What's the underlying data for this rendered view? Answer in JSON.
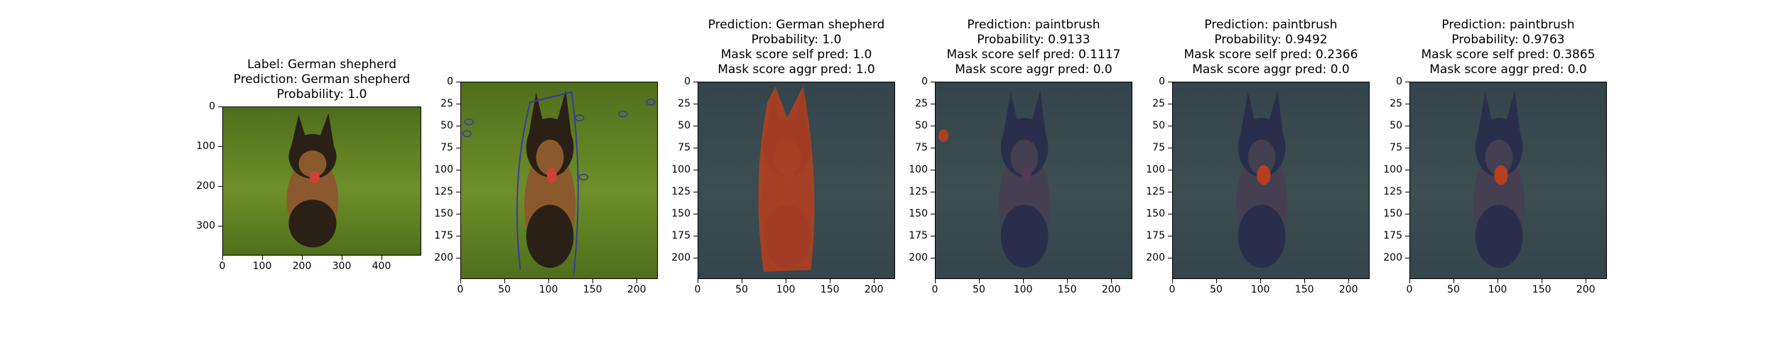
{
  "chart_data": [
    {
      "type": "image",
      "titles": [
        "Label: German shepherd",
        "Prediction: German shepherd",
        "Probability: 1.0"
      ],
      "x_ticks": [
        "0",
        "100",
        "200",
        "300",
        "400"
      ],
      "y_ticks": [
        "0",
        "100",
        "200",
        "300"
      ],
      "xlim": [
        0,
        500
      ],
      "ylim": [
        375,
        0
      ],
      "overlay": "none"
    },
    {
      "type": "image",
      "titles": [],
      "x_ticks": [
        "0",
        "50",
        "100",
        "150",
        "200"
      ],
      "y_ticks": [
        "0",
        "25",
        "50",
        "75",
        "100",
        "125",
        "150",
        "175",
        "200"
      ],
      "xlim": [
        0,
        224
      ],
      "ylim": [
        224,
        0
      ],
      "overlay": "segment-outlines"
    },
    {
      "type": "image",
      "titles": [
        "Prediction: German shepherd",
        "Probability: 1.0",
        "Mask score self pred: 1.0",
        "Mask score aggr pred: 1.0"
      ],
      "x_ticks": [
        "0",
        "50",
        "100",
        "150",
        "200"
      ],
      "y_ticks": [
        "0",
        "25",
        "50",
        "75",
        "100",
        "125",
        "150",
        "175",
        "200"
      ],
      "xlim": [
        0,
        224
      ],
      "ylim": [
        224,
        0
      ],
      "overlay": "mask-dog"
    },
    {
      "type": "image",
      "titles": [
        "Prediction: paintbrush",
        "Probability: 0.9133",
        "Mask score self pred: 0.1117",
        "Mask score aggr pred: 0.0"
      ],
      "x_ticks": [
        "0",
        "50",
        "100",
        "150",
        "200"
      ],
      "y_ticks": [
        "0",
        "25",
        "50",
        "75",
        "100",
        "125",
        "150",
        "175",
        "200"
      ],
      "xlim": [
        0,
        224
      ],
      "ylim": [
        224,
        0
      ],
      "overlay": "mask-small-left"
    },
    {
      "type": "image",
      "titles": [
        "Prediction: paintbrush",
        "Probability: 0.9492",
        "Mask score self pred: 0.2366",
        "Mask score aggr pred: 0.0"
      ],
      "x_ticks": [
        "0",
        "50",
        "100",
        "150",
        "200"
      ],
      "y_ticks": [
        "0",
        "25",
        "50",
        "75",
        "100",
        "125",
        "150",
        "175",
        "200"
      ],
      "xlim": [
        0,
        224
      ],
      "ylim": [
        224,
        0
      ],
      "overlay": "mask-tongue"
    },
    {
      "type": "image",
      "titles": [
        "Prediction: paintbrush",
        "Probability: 0.9763",
        "Mask score self pred: 0.3865",
        "Mask score aggr pred: 0.0"
      ],
      "x_ticks": [
        "0",
        "50",
        "100",
        "150",
        "200"
      ],
      "y_ticks": [
        "0",
        "25",
        "50",
        "75",
        "100",
        "125",
        "150",
        "175",
        "200"
      ],
      "xlim": [
        0,
        224
      ],
      "ylim": [
        224,
        0
      ],
      "overlay": "mask-tongue"
    }
  ],
  "colors": {
    "grass": "#6e8f2a",
    "grass_dark": "#4f6e1c",
    "dog_dark": "#2a2016",
    "dog_tan": "#8a5a2e",
    "tongue": "#d0403a",
    "dim_overlay": "#2a3560",
    "mask_red": "#c0401a",
    "outline": "#3a3aa0"
  }
}
